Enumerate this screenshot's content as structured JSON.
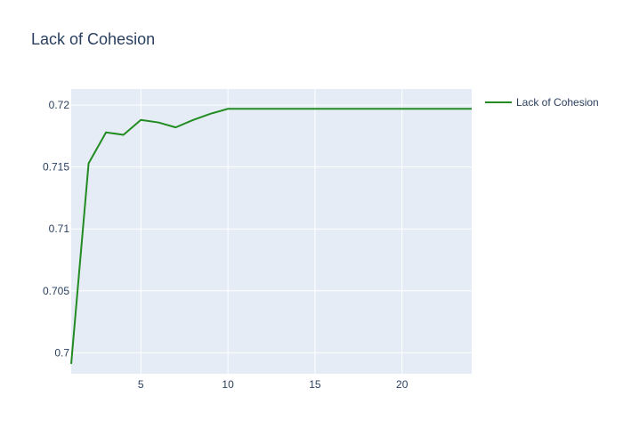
{
  "chart_data": {
    "type": "line",
    "title": "Lack of Cohesion",
    "xlabel": "",
    "ylabel": "",
    "xlim": [
      1,
      24
    ],
    "ylim": [
      0.6983,
      0.7213
    ],
    "x_ticks": [
      5,
      10,
      15,
      20
    ],
    "x_tick_labels": [
      "5",
      "10",
      "15",
      "20"
    ],
    "y_ticks": [
      0.7,
      0.705,
      0.71,
      0.715,
      0.72
    ],
    "y_tick_labels": [
      "0.7",
      "0.705",
      "0.71",
      "0.715",
      "0.72"
    ],
    "grid": true,
    "legend_position": "top-right",
    "series": [
      {
        "name": "Lack of Cohesion",
        "color": "#228b22",
        "x": [
          1,
          2,
          3,
          4,
          5,
          6,
          7,
          8,
          9,
          10,
          11,
          12,
          13,
          14,
          15,
          16,
          17,
          18,
          19,
          20,
          21,
          22,
          23,
          24
        ],
        "y": [
          0.6991,
          0.7153,
          0.7178,
          0.7176,
          0.7188,
          0.7186,
          0.7182,
          0.7188,
          0.7193,
          0.7197,
          0.7197,
          0.7197,
          0.7197,
          0.7197,
          0.7197,
          0.7197,
          0.7197,
          0.7197,
          0.7197,
          0.7197,
          0.7197,
          0.7197,
          0.7197,
          0.7197
        ]
      }
    ]
  },
  "colors": {
    "plot_background": "#e5ecf6",
    "grid": "#ffffff",
    "text": "#2a3f5f"
  }
}
